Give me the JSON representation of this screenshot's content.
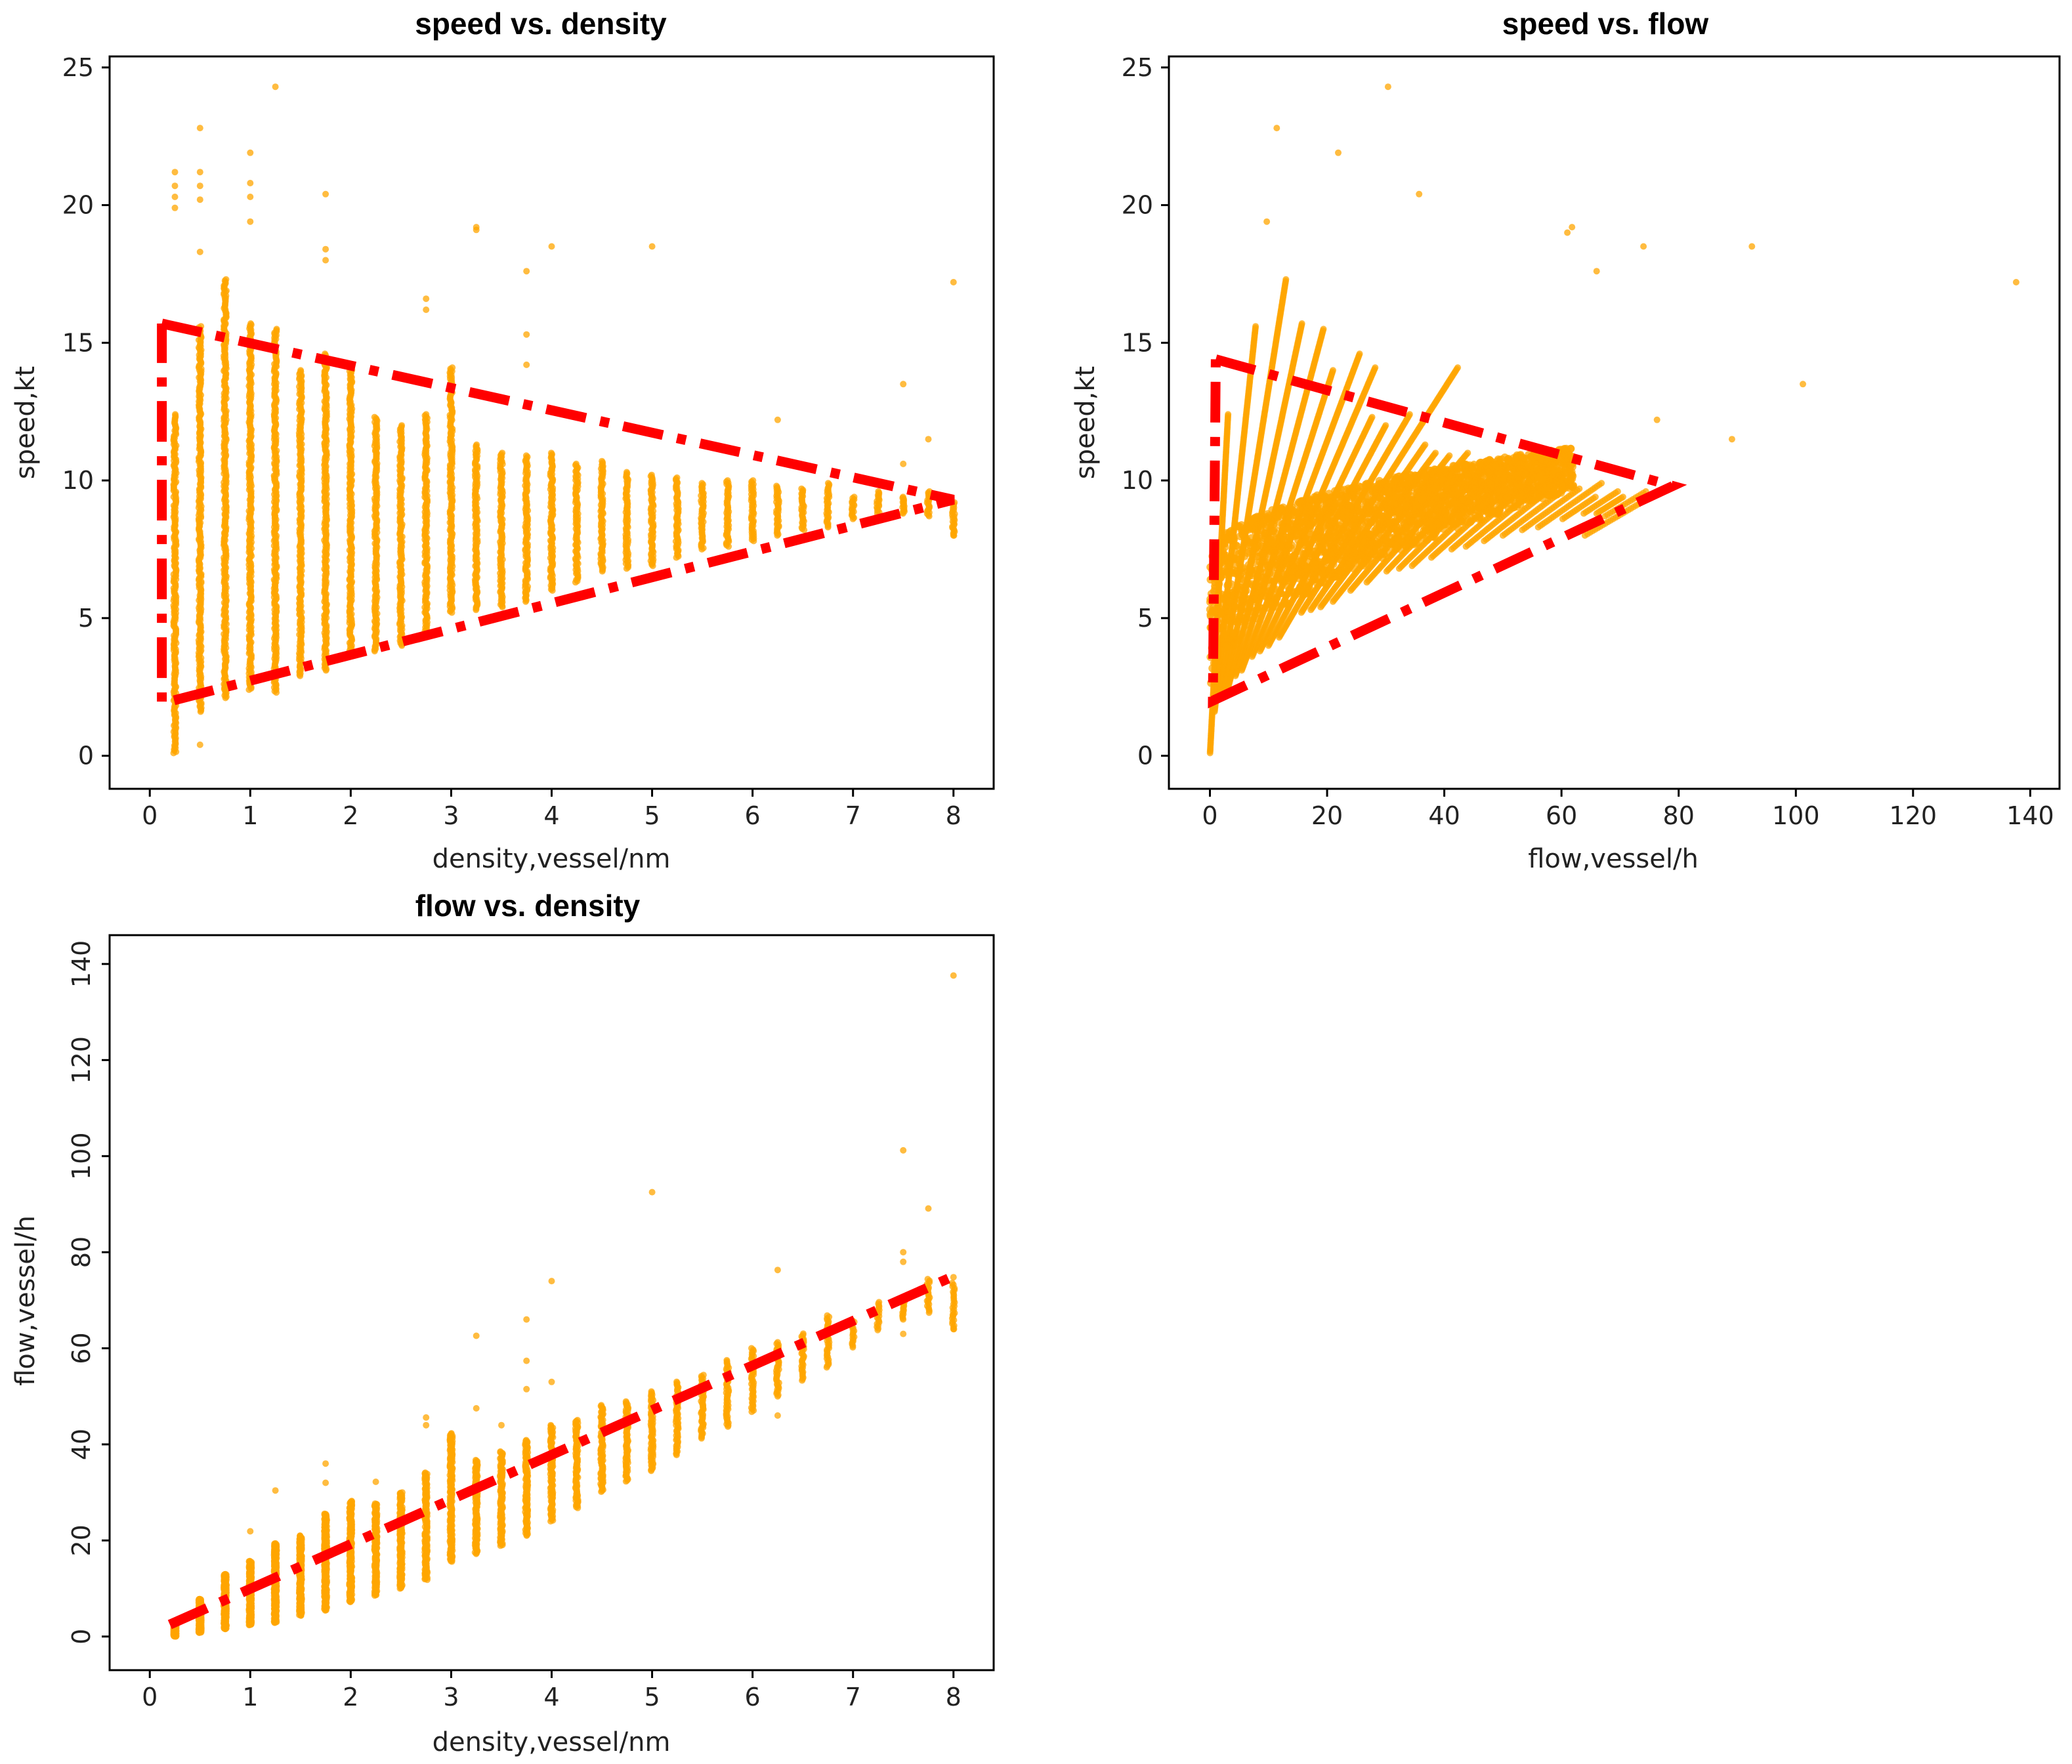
{
  "colors": {
    "points": "#FFA500",
    "envelope": "#FF0000",
    "frame": "#000000"
  },
  "chart_data": [
    {
      "id": "speed-density",
      "type": "scatter",
      "title": "speed vs. density",
      "xlabel": "density,vessel/nm",
      "ylabel": "speed,kt",
      "xlim": [
        -0.4,
        8.4
      ],
      "ylim": [
        -1.2,
        25.4
      ],
      "xticks": [
        0,
        1,
        2,
        3,
        4,
        5,
        6,
        7,
        8
      ],
      "yticks": [
        0,
        5,
        10,
        15,
        20,
        25
      ],
      "grid": false,
      "bands": [
        {
          "x": 0.25,
          "ymin": 0.1,
          "ymax": 12.4
        },
        {
          "x": 0.5,
          "ymin": 1.6,
          "ymax": 15.6
        },
        {
          "x": 0.75,
          "ymin": 2.1,
          "ymax": 17.3
        },
        {
          "x": 1.0,
          "ymin": 2.4,
          "ymax": 15.7
        },
        {
          "x": 1.25,
          "ymin": 2.3,
          "ymax": 15.5
        },
        {
          "x": 1.5,
          "ymin": 2.9,
          "ymax": 14.0
        },
        {
          "x": 1.75,
          "ymin": 3.1,
          "ymax": 14.6
        },
        {
          "x": 2.0,
          "ymin": 3.6,
          "ymax": 14.1
        },
        {
          "x": 2.25,
          "ymin": 3.8,
          "ymax": 12.3
        },
        {
          "x": 2.5,
          "ymin": 4.0,
          "ymax": 12.0
        },
        {
          "x": 2.75,
          "ymin": 4.3,
          "ymax": 12.4
        },
        {
          "x": 3.0,
          "ymin": 5.2,
          "ymax": 14.1
        },
        {
          "x": 3.25,
          "ymin": 5.3,
          "ymax": 11.3
        },
        {
          "x": 3.5,
          "ymin": 5.4,
          "ymax": 11.0
        },
        {
          "x": 3.75,
          "ymin": 5.6,
          "ymax": 10.9
        },
        {
          "x": 4.0,
          "ymin": 6.0,
          "ymax": 11.0
        },
        {
          "x": 4.25,
          "ymin": 6.3,
          "ymax": 10.6
        },
        {
          "x": 4.5,
          "ymin": 6.7,
          "ymax": 10.7
        },
        {
          "x": 4.75,
          "ymin": 6.8,
          "ymax": 10.3
        },
        {
          "x": 5.0,
          "ymin": 6.9,
          "ymax": 10.2
        },
        {
          "x": 5.25,
          "ymin": 7.2,
          "ymax": 10.1
        },
        {
          "x": 5.5,
          "ymin": 7.5,
          "ymax": 9.9
        },
        {
          "x": 5.75,
          "ymin": 7.6,
          "ymax": 10.0
        },
        {
          "x": 6.0,
          "ymin": 7.8,
          "ymax": 10.0
        },
        {
          "x": 6.25,
          "ymin": 8.0,
          "ymax": 9.8
        },
        {
          "x": 6.5,
          "ymin": 8.2,
          "ymax": 9.7
        },
        {
          "x": 6.75,
          "ymin": 8.3,
          "ymax": 9.9
        },
        {
          "x": 7.0,
          "ymin": 8.6,
          "ymax": 9.4
        },
        {
          "x": 7.25,
          "ymin": 8.8,
          "ymax": 9.6
        },
        {
          "x": 7.5,
          "ymin": 8.8,
          "ymax": 9.4
        },
        {
          "x": 7.75,
          "ymin": 8.7,
          "ymax": 9.6
        },
        {
          "x": 8.0,
          "ymin": 8.0,
          "ymax": 9.2
        }
      ],
      "outliers": [
        [
          0.25,
          21.2
        ],
        [
          0.25,
          20.7
        ],
        [
          0.25,
          20.3
        ],
        [
          0.25,
          19.9
        ],
        [
          0.5,
          22.8
        ],
        [
          0.5,
          21.2
        ],
        [
          0.5,
          20.7
        ],
        [
          0.5,
          20.2
        ],
        [
          0.5,
          18.3
        ],
        [
          0.5,
          0.4
        ],
        [
          1.0,
          21.9
        ],
        [
          1.0,
          20.8
        ],
        [
          1.0,
          20.3
        ],
        [
          1.0,
          19.4
        ],
        [
          1.25,
          24.3
        ],
        [
          1.75,
          20.4
        ],
        [
          1.75,
          18.4
        ],
        [
          1.75,
          18.0
        ],
        [
          2.75,
          16.6
        ],
        [
          2.75,
          16.2
        ],
        [
          3.25,
          19.2
        ],
        [
          3.25,
          19.1
        ],
        [
          3.75,
          17.6
        ],
        [
          3.75,
          15.3
        ],
        [
          3.75,
          14.2
        ],
        [
          4.0,
          18.5
        ],
        [
          5.0,
          18.5
        ],
        [
          6.25,
          12.2
        ],
        [
          7.5,
          13.5
        ],
        [
          7.5,
          10.6
        ],
        [
          7.75,
          11.5
        ],
        [
          8.0,
          17.2
        ],
        [
          8.0,
          8.0
        ]
      ],
      "envelope": [
        [
          0.12,
          15.7
        ],
        [
          8.0,
          9.3
        ],
        [
          0.12,
          1.9
        ],
        [
          0.12,
          15.7
        ]
      ]
    },
    {
      "id": "speed-flow",
      "type": "scatter",
      "title": "speed vs. flow",
      "xlabel": "flow,vessel/h",
      "ylabel": "speed,kt",
      "xlim": [
        -7,
        145
      ],
      "ylim": [
        -1.2,
        25.4
      ],
      "xticks": [
        0,
        20,
        40,
        60,
        80,
        100,
        120,
        140
      ],
      "yticks": [
        0,
        5,
        10,
        15,
        20,
        25
      ],
      "grid": false,
      "rays_density": [
        0.25,
        0.5,
        0.75,
        1.0,
        1.25,
        1.5,
        1.75,
        2.0,
        2.25,
        2.5,
        2.75,
        3.0,
        3.25,
        3.5,
        3.75,
        4.0,
        4.25,
        4.5,
        4.75,
        5.0,
        5.25,
        5.5,
        5.75,
        6.0,
        6.25,
        6.5,
        6.75,
        7.0,
        7.25,
        7.5,
        7.75,
        8.0
      ],
      "outliers": [
        [
          30.4,
          24.3
        ],
        [
          11.4,
          22.8
        ],
        [
          21.9,
          21.9
        ],
        [
          35.7,
          20.4
        ],
        [
          9.7,
          19.4
        ],
        [
          61.8,
          19.2
        ],
        [
          61.0,
          19.0
        ],
        [
          74.0,
          18.5
        ],
        [
          92.5,
          18.5
        ],
        [
          66.0,
          17.6
        ],
        [
          137.6,
          17.2
        ],
        [
          101.2,
          13.5
        ],
        [
          89.1,
          11.5
        ],
        [
          76.3,
          12.2
        ]
      ],
      "envelope": [
        [
          1.0,
          14.4
        ],
        [
          79.0,
          9.8
        ],
        [
          0.5,
          2.0
        ],
        [
          1.0,
          14.4
        ]
      ]
    },
    {
      "id": "flow-density",
      "type": "scatter",
      "title": "flow vs. density",
      "xlabel": "density,vessel/nm",
      "ylabel": "flow,vessel/h",
      "xlim": [
        -0.4,
        8.4
      ],
      "ylim": [
        -7,
        146
      ],
      "xticks": [
        0,
        1,
        2,
        3,
        4,
        5,
        6,
        7,
        8
      ],
      "yticks": [
        0,
        20,
        40,
        60,
        80,
        100,
        120,
        140
      ],
      "grid": false,
      "outliers": [
        [
          1.25,
          30.4
        ],
        [
          1.0,
          21.9
        ],
        [
          1.75,
          36.0
        ],
        [
          1.75,
          32.0
        ],
        [
          2.25,
          32.2
        ],
        [
          2.75,
          45.6
        ],
        [
          2.75,
          44.0
        ],
        [
          3.25,
          62.6
        ],
        [
          3.25,
          47.5
        ],
        [
          3.5,
          44.0
        ],
        [
          3.75,
          66.0
        ],
        [
          3.75,
          57.4
        ],
        [
          3.75,
          51.5
        ],
        [
          4.0,
          74.0
        ],
        [
          4.0,
          53.0
        ],
        [
          5.0,
          92.5
        ],
        [
          6.25,
          76.3
        ],
        [
          6.25,
          46.0
        ],
        [
          7.5,
          101.2
        ],
        [
          7.5,
          80.0
        ],
        [
          7.5,
          78.0
        ],
        [
          7.75,
          89.1
        ],
        [
          8.0,
          137.6
        ],
        [
          8.0,
          74.8
        ],
        [
          8.0,
          67.0
        ],
        [
          8.0,
          64.0
        ],
        [
          7.5,
          63.0
        ],
        [
          7.75,
          70.0
        ]
      ],
      "fit": [
        [
          0.2,
          2.5
        ],
        [
          8.0,
          75.0
        ]
      ]
    }
  ]
}
